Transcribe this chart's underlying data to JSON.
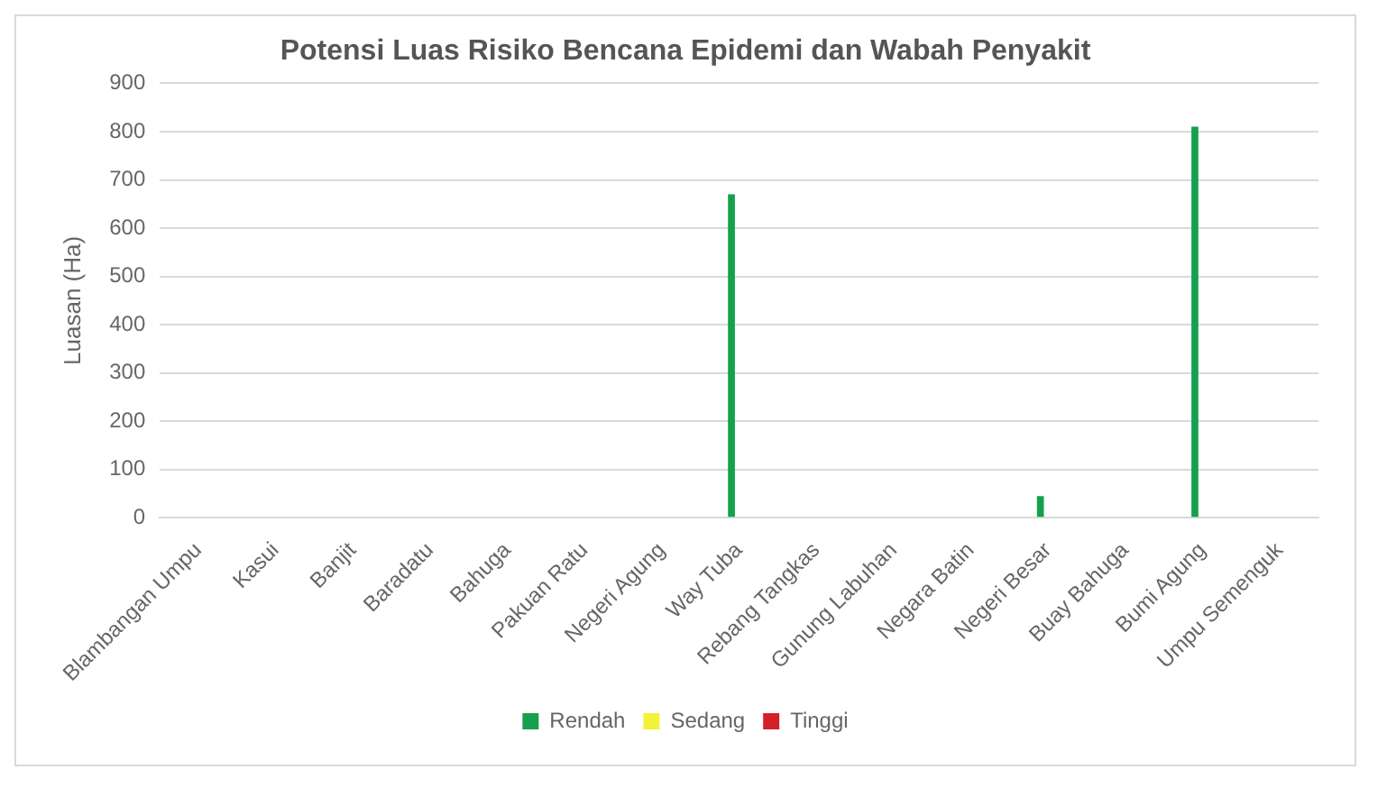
{
  "chart_data": {
    "type": "bar",
    "title": "Potensi Luas Risiko Bencana Epidemi dan Wabah Penyakit",
    "ylabel": "Luasan (Ha)",
    "categories": [
      "Blambangan Umpu",
      "Kasui",
      "Banjit",
      "Baradatu",
      "Bahuga",
      "Pakuan Ratu",
      "Negeri Agung",
      "Way Tuba",
      "Rebang Tangkas",
      "Gunung Labuhan",
      "Negara Batin",
      "Negeri Besar",
      "Buay Bahuga",
      "Bumi Agung",
      "Umpu Semenguk"
    ],
    "series": [
      {
        "name": "Rendah",
        "color": "#16a04d",
        "values": [
          0,
          0,
          0,
          0,
          0,
          0,
          0,
          670,
          0,
          0,
          0,
          45,
          0,
          810,
          0
        ]
      },
      {
        "name": "Sedang",
        "color": "#f2f23a",
        "values": [
          0,
          0,
          0,
          0,
          0,
          0,
          0,
          0,
          0,
          0,
          0,
          0,
          0,
          0,
          0
        ]
      },
      {
        "name": "Tinggi",
        "color": "#d42027",
        "values": [
          0,
          0,
          0,
          0,
          0,
          0,
          0,
          0,
          0,
          0,
          0,
          0,
          0,
          0,
          0
        ]
      }
    ],
    "ylim": [
      0,
      900
    ],
    "yticks": [
      0,
      100,
      200,
      300,
      400,
      500,
      600,
      700,
      800,
      900
    ],
    "grid": "y",
    "legend": "bottom"
  }
}
